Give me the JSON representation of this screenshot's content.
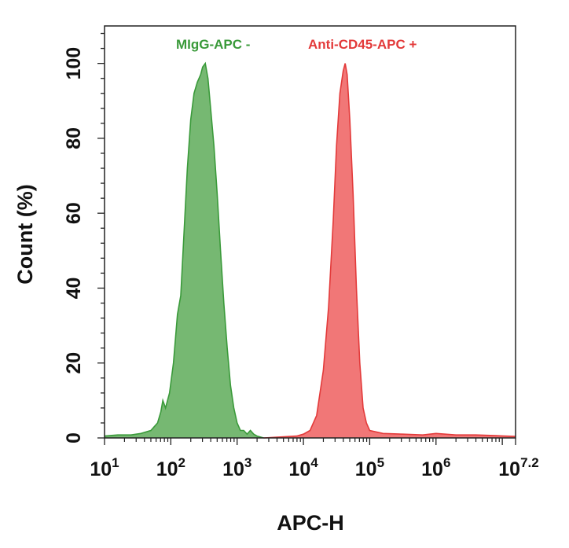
{
  "chart_data": {
    "type": "area",
    "xlabel": "APC-H",
    "ylabel": "Count  (%)",
    "x_scale": "log",
    "xlim": [
      1,
      7.2
    ],
    "ylim": [
      0,
      110
    ],
    "x_ticks": [
      {
        "base": "10",
        "exp": "1",
        "value": 1
      },
      {
        "base": "10",
        "exp": "2",
        "value": 2
      },
      {
        "base": "10",
        "exp": "3",
        "value": 3
      },
      {
        "base": "10",
        "exp": "4",
        "value": 4
      },
      {
        "base": "10",
        "exp": "5",
        "value": 5
      },
      {
        "base": "10",
        "exp": "6",
        "value": 6
      },
      {
        "base": "10",
        "exp": "7.2",
        "value": 7.2
      }
    ],
    "y_ticks": [
      "0",
      "20",
      "40",
      "60",
      "80",
      "100"
    ],
    "grid": false,
    "legend_position": "top",
    "series": [
      {
        "name": "MIgG-APC  -",
        "color": "#3a9a3a",
        "fill": "#6fb46a",
        "points": [
          [
            1.0,
            0.5
          ],
          [
            1.2,
            0.8
          ],
          [
            1.4,
            0.8
          ],
          [
            1.55,
            1.2
          ],
          [
            1.7,
            2.0
          ],
          [
            1.8,
            4.0
          ],
          [
            1.85,
            7.0
          ],
          [
            1.88,
            10.0
          ],
          [
            1.92,
            8.0
          ],
          [
            1.98,
            12.0
          ],
          [
            2.04,
            20.0
          ],
          [
            2.1,
            33.0
          ],
          [
            2.15,
            38.0
          ],
          [
            2.2,
            55.0
          ],
          [
            2.25,
            72.0
          ],
          [
            2.3,
            85.0
          ],
          [
            2.35,
            92.0
          ],
          [
            2.4,
            95.0
          ],
          [
            2.45,
            97.0
          ],
          [
            2.48,
            99.0
          ],
          [
            2.52,
            100.0
          ],
          [
            2.56,
            96.0
          ],
          [
            2.6,
            88.0
          ],
          [
            2.65,
            78.0
          ],
          [
            2.7,
            65.0
          ],
          [
            2.75,
            50.0
          ],
          [
            2.8,
            36.0
          ],
          [
            2.85,
            24.0
          ],
          [
            2.9,
            14.0
          ],
          [
            2.95,
            8.0
          ],
          [
            3.0,
            4.0
          ],
          [
            3.05,
            2.0
          ],
          [
            3.1,
            2.0
          ],
          [
            3.15,
            1.0
          ],
          [
            3.2,
            2.0
          ],
          [
            3.25,
            1.0
          ],
          [
            3.3,
            0.5
          ],
          [
            3.4,
            0.0
          ]
        ]
      },
      {
        "name": "Anti-CD45-APC +",
        "color": "#e33a3a",
        "fill": "#f07070",
        "points": [
          [
            3.4,
            0.0
          ],
          [
            3.7,
            0.3
          ],
          [
            3.9,
            0.5
          ],
          [
            4.0,
            1.0
          ],
          [
            4.1,
            2.0
          ],
          [
            4.2,
            6.0
          ],
          [
            4.3,
            18.0
          ],
          [
            4.38,
            35.0
          ],
          [
            4.45,
            58.0
          ],
          [
            4.5,
            78.0
          ],
          [
            4.55,
            92.0
          ],
          [
            4.6,
            98.0
          ],
          [
            4.63,
            100.0
          ],
          [
            4.66,
            97.0
          ],
          [
            4.7,
            85.0
          ],
          [
            4.75,
            65.0
          ],
          [
            4.8,
            40.0
          ],
          [
            4.85,
            20.0
          ],
          [
            4.9,
            8.0
          ],
          [
            4.95,
            4.0
          ],
          [
            5.0,
            2.0
          ],
          [
            5.2,
            1.2
          ],
          [
            5.5,
            1.0
          ],
          [
            5.8,
            0.8
          ],
          [
            6.0,
            1.2
          ],
          [
            6.3,
            0.8
          ],
          [
            6.6,
            0.8
          ],
          [
            6.9,
            0.6
          ],
          [
            7.2,
            0.4
          ]
        ]
      }
    ]
  }
}
